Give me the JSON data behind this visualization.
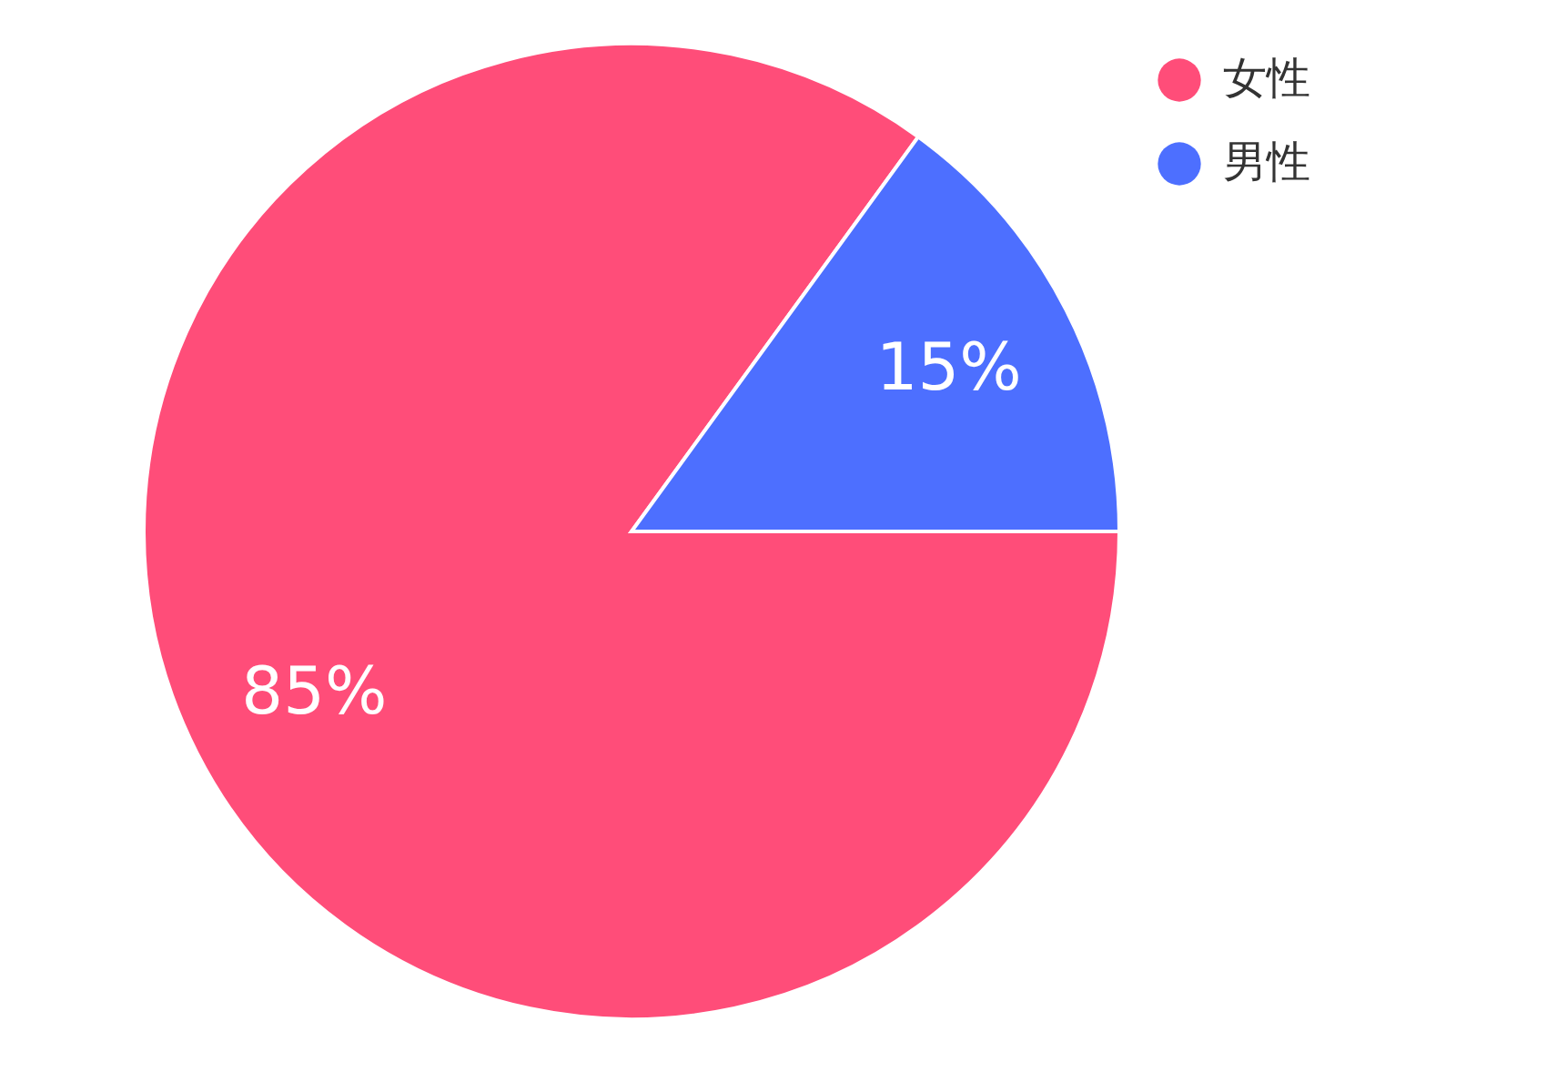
{
  "chart_data": {
    "type": "pie",
    "categories": [
      "女性",
      "男性"
    ],
    "values": [
      85,
      15
    ],
    "colors": [
      "#ff4d79",
      "#4d6fff"
    ],
    "value_labels": [
      "85%",
      "15%"
    ],
    "legend": "top right"
  }
}
